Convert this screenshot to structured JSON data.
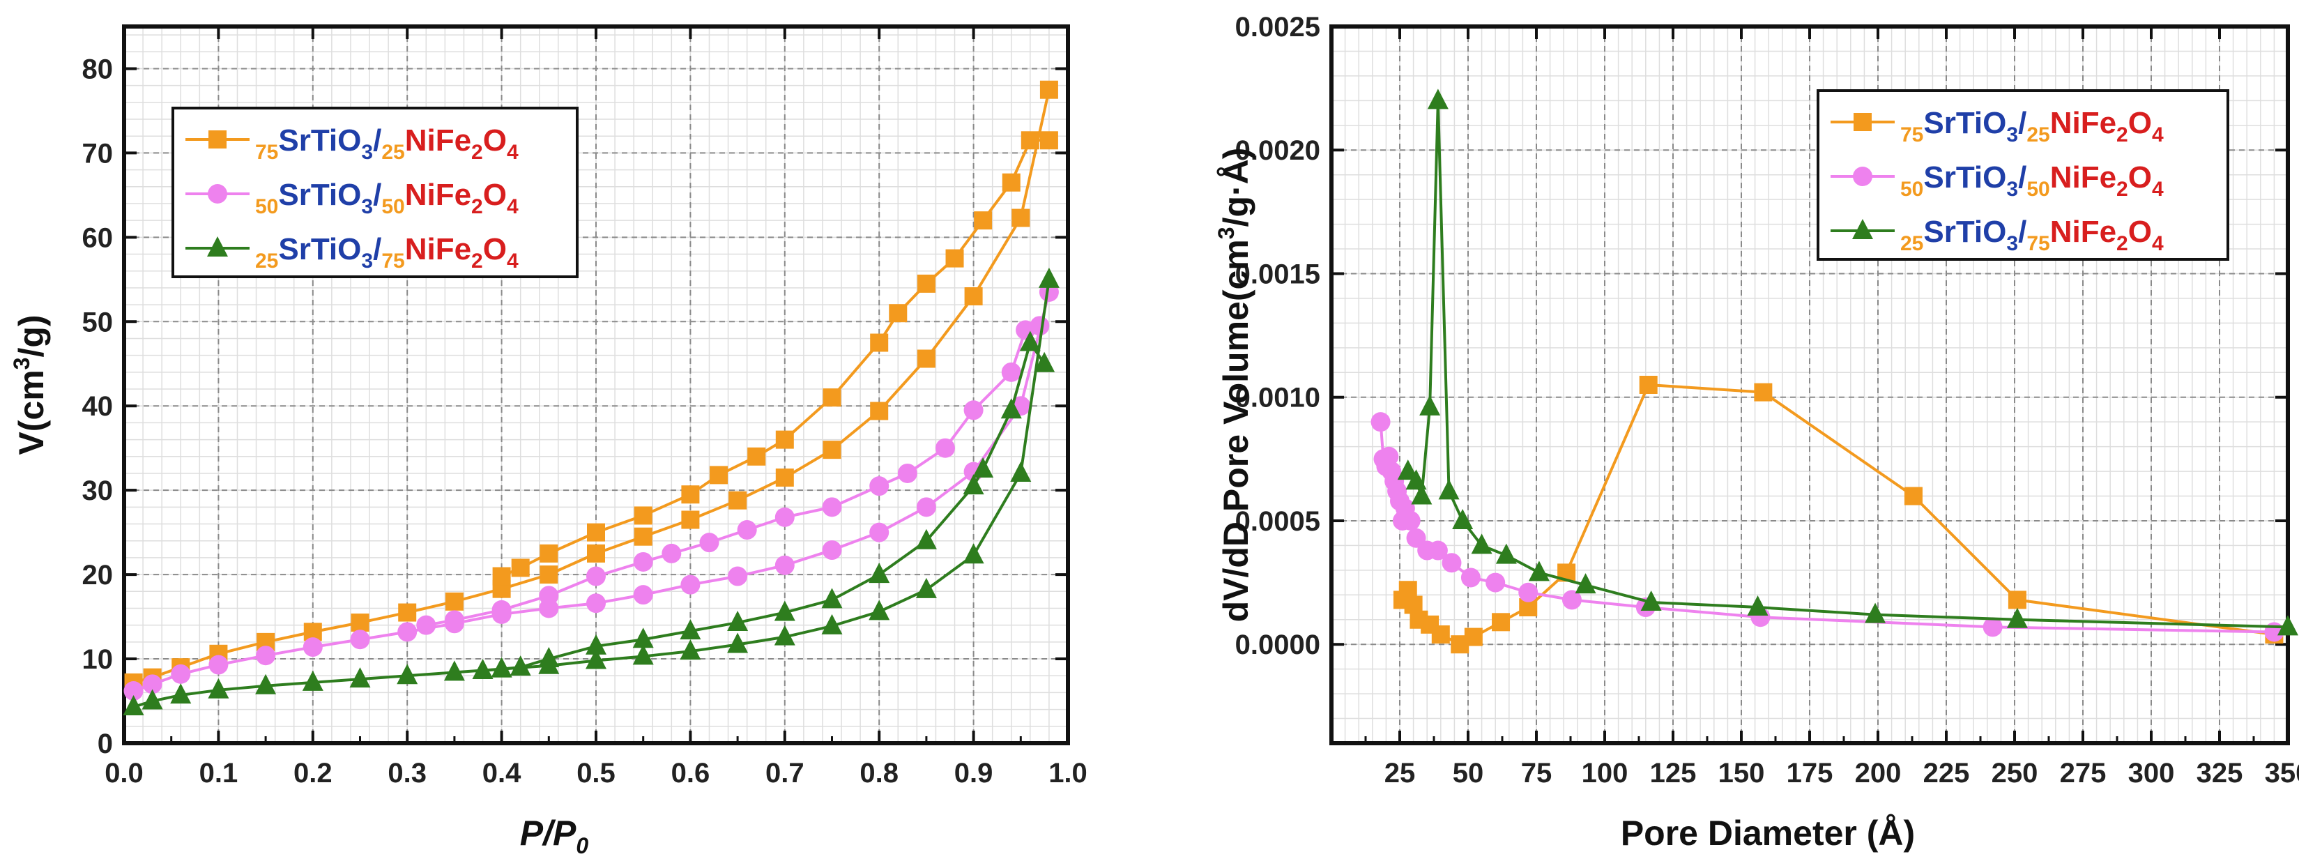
{
  "chart_data": [
    {
      "type": "line",
      "title": "",
      "xlabel": "P/P",
      "xlabel_sub": "0",
      "ylabel": "V(cm",
      "ylabel_sup": "3",
      "ylabel_end": "/g)",
      "xlim": [
        0.0,
        1.0
      ],
      "ylim": [
        0,
        85
      ],
      "xticks": [
        0.0,
        0.1,
        0.2,
        0.3,
        0.4,
        0.5,
        0.6,
        0.7,
        0.8,
        0.9,
        1.0
      ],
      "xtick_labels": [
        "0.0",
        "0.1",
        "0.2",
        "0.3",
        "0.4",
        "0.5",
        "0.6",
        "0.7",
        "0.8",
        "0.9",
        "1.0"
      ],
      "yticks": [
        0,
        10,
        20,
        30,
        40,
        50,
        60,
        70,
        80
      ],
      "ytick_labels": [
        "0",
        "10",
        "20",
        "30",
        "40",
        "50",
        "60",
        "70",
        "80"
      ],
      "minor_x_step": 0.02,
      "minor_y_step": 2,
      "grid": true,
      "legend_position": "top-left",
      "series": [
        {
          "name": "75SrTiO3/25NiFe2O4",
          "pre": "75",
          "a": "SrTiO",
          "a_sub": "3",
          "mid": "25",
          "b": "NiFe",
          "b_sub1": "2",
          "b2": "O",
          "b_sub2": "4",
          "color": "#F39A1E",
          "marker": "square",
          "adsorption": {
            "x": [
              0.01,
              0.03,
              0.06,
              0.1,
              0.15,
              0.2,
              0.25,
              0.3,
              0.35,
              0.4,
              0.45,
              0.5,
              0.55,
              0.6,
              0.65,
              0.7,
              0.75,
              0.8,
              0.85,
              0.9,
              0.95,
              0.98
            ],
            "y": [
              7.2,
              7.8,
              9.0,
              10.6,
              12.0,
              13.2,
              14.3,
              15.5,
              16.8,
              18.3,
              20.0,
              22.5,
              24.5,
              26.5,
              28.8,
              31.5,
              34.8,
              39.4,
              45.6,
              53.0,
              62.3,
              77.5
            ]
          },
          "desorption": {
            "x": [
              0.98,
              0.96,
              0.94,
              0.91,
              0.88,
              0.85,
              0.82,
              0.8,
              0.75,
              0.7,
              0.67,
              0.63,
              0.6,
              0.55,
              0.5,
              0.45,
              0.42,
              0.4
            ],
            "y": [
              71.5,
              71.5,
              66.5,
              62.0,
              57.5,
              54.5,
              51.0,
              47.5,
              41.0,
              36.0,
              34.0,
              31.8,
              29.5,
              27.0,
              25.0,
              22.5,
              20.8,
              19.8
            ]
          }
        },
        {
          "name": "50SrTiO3/50NiFe2O4",
          "pre": "50",
          "a": "SrTiO",
          "a_sub": "3",
          "mid": "50",
          "b": "NiFe",
          "b_sub1": "2",
          "b2": "O",
          "b_sub2": "4",
          "color": "#EE82EE",
          "marker": "circle",
          "adsorption": {
            "x": [
              0.01,
              0.03,
              0.06,
              0.1,
              0.15,
              0.2,
              0.25,
              0.3,
              0.35,
              0.4,
              0.45,
              0.5,
              0.55,
              0.6,
              0.65,
              0.7,
              0.75,
              0.8,
              0.85,
              0.9,
              0.95,
              0.98
            ],
            "y": [
              6.2,
              7.0,
              8.2,
              9.3,
              10.4,
              11.4,
              12.3,
              13.2,
              14.2,
              15.3,
              16.0,
              16.6,
              17.6,
              18.8,
              19.8,
              21.1,
              22.9,
              25.0,
              28.0,
              32.2,
              40.0,
              53.5
            ]
          },
          "desorption": {
            "x": [
              0.97,
              0.955,
              0.94,
              0.9,
              0.87,
              0.83,
              0.8,
              0.75,
              0.7,
              0.66,
              0.62,
              0.58,
              0.55,
              0.5,
              0.45,
              0.4,
              0.35,
              0.32
            ],
            "y": [
              49.5,
              49.0,
              44.0,
              39.5,
              35.0,
              32.0,
              30.5,
              28.0,
              26.8,
              25.3,
              23.8,
              22.5,
              21.5,
              19.8,
              17.5,
              15.8,
              14.6,
              14.0
            ]
          }
        },
        {
          "name": "25SrTiO3/75NiFe2O4",
          "pre": "25",
          "a": "SrTiO",
          "a_sub": "3",
          "mid": "75",
          "b": "NiFe",
          "b_sub1": "2",
          "b2": "O",
          "b_sub2": "4",
          "color": "#2E7D1E",
          "marker": "triangle",
          "adsorption": {
            "x": [
              0.01,
              0.03,
              0.06,
              0.1,
              0.15,
              0.2,
              0.25,
              0.3,
              0.35,
              0.4,
              0.45,
              0.5,
              0.55,
              0.6,
              0.65,
              0.7,
              0.75,
              0.8,
              0.85,
              0.9,
              0.95,
              0.98
            ],
            "y": [
              4.3,
              5.0,
              5.7,
              6.3,
              6.8,
              7.2,
              7.6,
              8.0,
              8.4,
              8.8,
              9.2,
              9.8,
              10.3,
              10.9,
              11.7,
              12.6,
              13.9,
              15.6,
              18.2,
              22.3,
              32.0,
              55.0
            ]
          },
          "desorption": {
            "x": [
              0.975,
              0.96,
              0.94,
              0.91,
              0.9,
              0.85,
              0.8,
              0.75,
              0.7,
              0.65,
              0.6,
              0.55,
              0.5,
              0.45,
              0.42,
              0.4,
              0.38
            ],
            "y": [
              45.0,
              47.5,
              39.5,
              32.5,
              30.5,
              24.0,
              20.0,
              17.0,
              15.5,
              14.3,
              13.3,
              12.3,
              11.5,
              10.0,
              9.0,
              8.8,
              8.6
            ]
          }
        }
      ]
    },
    {
      "type": "line",
      "title": "",
      "xlabel": "Pore Diameter (Å)",
      "ylabel": "dV/dD Pore Volume(cm",
      "ylabel_sup": "3",
      "ylabel_end": "/g·Å)",
      "xlim": [
        0,
        350
      ],
      "ylim": [
        -0.0004,
        0.0025
      ],
      "xticks": [
        25,
        50,
        75,
        100,
        125,
        150,
        175,
        200,
        225,
        250,
        275,
        300,
        325,
        350
      ],
      "xtick_labels": [
        "25",
        "50",
        "75",
        "100",
        "125",
        "150",
        "175",
        "200",
        "225",
        "250",
        "275",
        "300",
        "325",
        "350"
      ],
      "yticks": [
        0.0,
        0.0005,
        0.001,
        0.0015,
        0.002,
        0.0025
      ],
      "ytick_labels": [
        "0.0000",
        "0.0005",
        "0.0010",
        "0.0015",
        "0.0020",
        "0.0025"
      ],
      "minor_x_step": 5,
      "minor_y_step": 0.0001,
      "grid": true,
      "legend_position": "top-right",
      "series": [
        {
          "name": "75SrTiO3/25NiFe2O4",
          "pre": "75",
          "a": "SrTiO",
          "a_sub": "3",
          "mid": "25",
          "b": "NiFe",
          "b_sub1": "2",
          "b2": "O",
          "b_sub2": "4",
          "color": "#F39A1E",
          "marker": "square",
          "x": [
            26,
            28,
            30,
            32,
            36,
            40,
            47,
            52,
            62,
            72,
            86,
            116,
            158,
            213,
            251,
            345
          ],
          "y": [
            0.00018,
            0.00022,
            0.00016,
            0.0001,
            8e-05,
            4e-05,
            0.0,
            3e-05,
            9e-05,
            0.00015,
            0.00029,
            0.00105,
            0.00102,
            0.0006,
            0.00018,
            4e-05
          ]
        },
        {
          "name": "50SrTiO3/50NiFe2O4",
          "pre": "50",
          "a": "SrTiO",
          "a_sub": "3",
          "mid": "50",
          "b": "NiFe",
          "b_sub1": "2",
          "b2": "O",
          "b_sub2": "4",
          "color": "#EE82EE",
          "marker": "circle",
          "x": [
            18,
            19,
            20,
            21,
            22,
            23,
            24,
            25,
            26,
            27,
            29,
            31,
            35,
            39,
            44,
            51,
            60,
            72,
            88,
            115,
            157,
            242,
            345
          ],
          "y": [
            0.0009,
            0.00075,
            0.00072,
            0.00076,
            0.0007,
            0.00066,
            0.00062,
            0.00058,
            0.0005,
            0.00055,
            0.0005,
            0.00043,
            0.00038,
            0.00038,
            0.00033,
            0.00027,
            0.00025,
            0.00021,
            0.00018,
            0.00015,
            0.00011,
            7e-05,
            5e-05
          ]
        },
        {
          "name": "25SrTiO3/75NiFe2O4",
          "pre": "25",
          "a": "SrTiO",
          "a_sub": "3",
          "mid": "75",
          "b": "NiFe",
          "b_sub1": "2",
          "b2": "O",
          "b_sub2": "4",
          "color": "#2E7D1E",
          "marker": "triangle",
          "x": [
            28,
            31,
            33,
            36,
            39,
            43,
            48,
            55,
            64,
            76,
            93,
            117,
            156,
            199,
            251,
            350
          ],
          "y": [
            0.0007,
            0.00066,
            0.0006,
            0.00096,
            0.0022,
            0.00062,
            0.0005,
            0.0004,
            0.00036,
            0.00029,
            0.00024,
            0.00017,
            0.00015,
            0.00012,
            0.0001,
            7e-05
          ]
        }
      ]
    }
  ]
}
